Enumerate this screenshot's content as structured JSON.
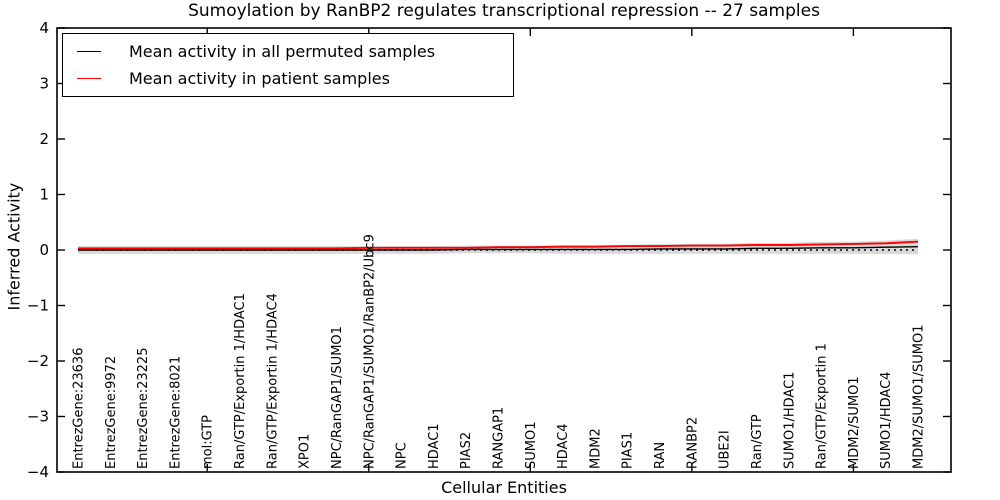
{
  "figure": {
    "title": "Sumoylation by RanBP2 regulates transcriptional repression -- 27 samples",
    "xlabel": "Cellular Entities",
    "ylabel": "Inferred Activity"
  },
  "legend": {
    "entries": [
      {
        "label": "Mean activity in all permuted samples",
        "color": "#000000"
      },
      {
        "label": "Mean activity in patient samples",
        "color": "#ff0000"
      }
    ]
  },
  "chart_data": {
    "type": "line",
    "title": "Sumoylation by RanBP2 regulates transcriptional repression -- 27 samples",
    "xlabel": "Cellular Entities",
    "ylabel": "Inferred Activity",
    "ylim": [
      -4,
      4
    ],
    "ytick_labels": [
      "4",
      "3",
      "2",
      "1",
      "0",
      "−1",
      "−2",
      "−3",
      "−4"
    ],
    "ytick_values": [
      4,
      3,
      2,
      1,
      0,
      -1,
      -2,
      -3,
      -4
    ],
    "xtick_entity_indices": [
      4,
      9,
      14,
      19,
      24
    ],
    "grid": false,
    "legend_position": "upper left",
    "zero_line": {
      "y": 0,
      "style": "dotted",
      "color": "#000000"
    },
    "categories": [
      "EntrezGene:23636",
      "EntrezGene:9972",
      "EntrezGene:23225",
      "EntrezGene:8021",
      "mol:GTP",
      "Ran/GTP/Exportin 1/HDAC1",
      "Ran/GTP/Exportin 1/HDAC4",
      "XPO1",
      "NPC/RanGAP1/SUMO1",
      "NPC/RanGAP1/SUMO1/RanBP2/Ubc9",
      "NPC",
      "HDAC1",
      "PIAS2",
      "RANGAP1",
      "SUMO1",
      "HDAC4",
      "MDM2",
      "PIAS1",
      "RAN",
      "RANBP2",
      "UBE2I",
      "Ran/GTP",
      "SUMO1/HDAC1",
      "Ran/GTP/Exportin 1",
      "MDM2/SUMO1",
      "SUMO1/HDAC4",
      "MDM2/SUMO1/SUMO1"
    ],
    "series": [
      {
        "name": "Mean activity in all permuted samples",
        "color": "#000000",
        "values": [
          0,
          0,
          0,
          0,
          0,
          0,
          0,
          0,
          0,
          0,
          0,
          0,
          0.01,
          0.01,
          0.01,
          0.01,
          0.01,
          0.01,
          0.02,
          0.02,
          0.02,
          0.03,
          0.03,
          0.04,
          0.04,
          0.05,
          0.06
        ]
      },
      {
        "name": "Mean activity in patient samples",
        "color": "#ff0000",
        "values": [
          0.03,
          0.03,
          0.03,
          0.03,
          0.03,
          0.03,
          0.03,
          0.03,
          0.03,
          0.04,
          0.04,
          0.04,
          0.04,
          0.05,
          0.05,
          0.06,
          0.06,
          0.07,
          0.07,
          0.08,
          0.08,
          0.09,
          0.09,
          0.1,
          0.11,
          0.12,
          0.15
        ]
      }
    ],
    "band": {
      "name": "permutation-spread-band",
      "color": "#d9d9d9",
      "center_series": "Mean activity in all permuted samples",
      "half_width": [
        0.07,
        0.07,
        0.07,
        0.07,
        0.07,
        0.07,
        0.07,
        0.07,
        0.07,
        0.07,
        0.07,
        0.07,
        0.07,
        0.07,
        0.07,
        0.08,
        0.08,
        0.08,
        0.09,
        0.09,
        0.09,
        0.1,
        0.1,
        0.11,
        0.11,
        0.12,
        0.14
      ]
    }
  }
}
